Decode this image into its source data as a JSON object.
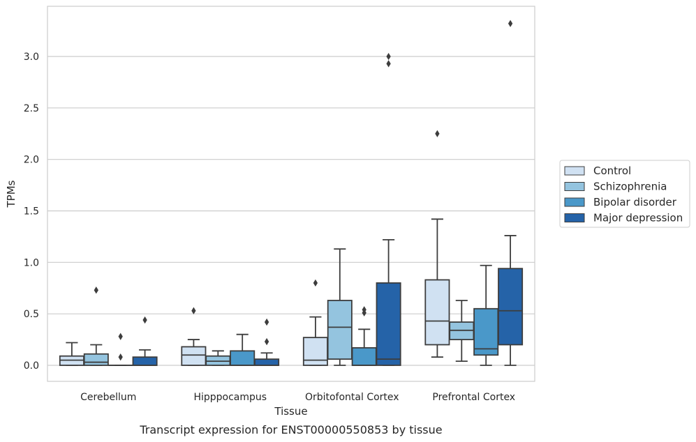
{
  "chart_data": {
    "type": "box",
    "title": "",
    "caption": "Transcript expression for ENST00000550853 by tissue",
    "xlabel": "Tissue",
    "ylabel": "TPMs",
    "ylim": [
      -0.16,
      3.49
    ],
    "yticks": [
      "0.0",
      "0.5",
      "1.0",
      "1.5",
      "2.0",
      "2.5",
      "3.0"
    ],
    "ytick_values": [
      0,
      0.5,
      1.0,
      1.5,
      2.0,
      2.5,
      3.0
    ],
    "grid": "horizontal",
    "legend_position": "right",
    "categories": [
      "Cerebellum",
      "Hipppocampus",
      "Orbitofontal Cortex",
      "Prefrontal Cortex"
    ],
    "series": [
      {
        "name": "Control",
        "color": "#d0e1f2",
        "boxes": [
          {
            "whislo": 0,
            "q1": 0,
            "med": 0.05,
            "q3": 0.09,
            "whishi": 0.22,
            "fliers": []
          },
          {
            "whislo": 0,
            "q1": 0,
            "med": 0.1,
            "q3": 0.18,
            "whishi": 0.25,
            "fliers": [
              0.53
            ]
          },
          {
            "whislo": 0,
            "q1": 0,
            "med": 0.05,
            "q3": 0.27,
            "whishi": 0.47,
            "fliers": [
              0.8
            ]
          },
          {
            "whislo": 0.08,
            "q1": 0.2,
            "med": 0.43,
            "q3": 0.83,
            "whishi": 1.42,
            "fliers": [
              2.25
            ]
          }
        ]
      },
      {
        "name": "Schizophrenia",
        "color": "#94c4df",
        "boxes": [
          {
            "whislo": 0,
            "q1": 0,
            "med": 0.03,
            "q3": 0.11,
            "whishi": 0.2,
            "fliers": [
              0.73
            ]
          },
          {
            "whislo": 0,
            "q1": 0,
            "med": 0.04,
            "q3": 0.09,
            "whishi": 0.14,
            "fliers": []
          },
          {
            "whislo": 0,
            "q1": 0.06,
            "med": 0.37,
            "q3": 0.63,
            "whishi": 1.13,
            "fliers": []
          },
          {
            "whislo": 0.04,
            "q1": 0.25,
            "med": 0.34,
            "q3": 0.42,
            "whishi": 0.63,
            "fliers": []
          }
        ]
      },
      {
        "name": "Bipolar disorder",
        "color": "#4a98c9",
        "boxes": [
          {
            "whislo": 0,
            "q1": 0,
            "med": 0,
            "q3": 0,
            "whishi": 0,
            "fliers": [
              0.08,
              0.28
            ]
          },
          {
            "whislo": 0,
            "q1": 0,
            "med": 0,
            "q3": 0.14,
            "whishi": 0.3,
            "fliers": []
          },
          {
            "whislo": 0,
            "q1": 0,
            "med": 0,
            "q3": 0.17,
            "whishi": 0.35,
            "fliers": [
              0.51,
              0.54
            ]
          },
          {
            "whislo": 0,
            "q1": 0.1,
            "med": 0.16,
            "q3": 0.55,
            "whishi": 0.97,
            "fliers": []
          }
        ]
      },
      {
        "name": "Major depression",
        "color": "#2563a8",
        "boxes": [
          {
            "whislo": 0,
            "q1": 0,
            "med": 0,
            "q3": 0.08,
            "whishi": 0.15,
            "fliers": [
              0.44
            ]
          },
          {
            "whislo": 0,
            "q1": 0,
            "med": 0,
            "q3": 0.06,
            "whishi": 0.12,
            "fliers": [
              0.23,
              0.42
            ]
          },
          {
            "whislo": 0,
            "q1": 0,
            "med": 0.06,
            "q3": 0.8,
            "whishi": 1.22,
            "fliers": [
              2.93,
              3.0
            ]
          },
          {
            "whislo": 0,
            "q1": 0.2,
            "med": 0.53,
            "q3": 0.94,
            "whishi": 1.26,
            "fliers": [
              3.32
            ]
          }
        ]
      }
    ]
  }
}
